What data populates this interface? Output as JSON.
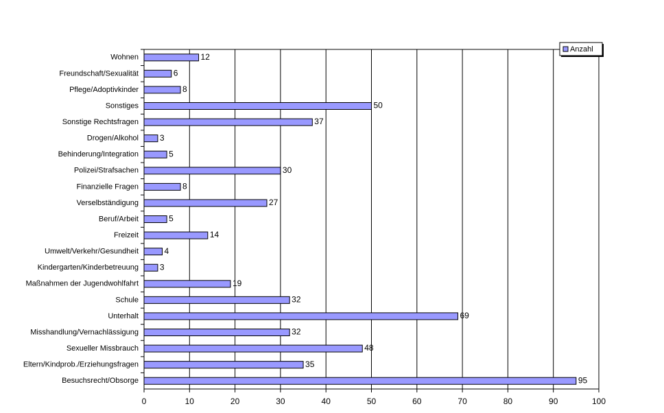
{
  "chart_data": {
    "type": "bar",
    "orientation": "horizontal",
    "categories": [
      "Wohnen",
      "Freundschaft/Sexualität",
      "Pflege/Adoptivkinder",
      "Sonstiges",
      "Sonstige Rechtsfragen",
      "Drogen/Alkohol",
      "Behinderung/Integration",
      "Polizei/Strafsachen",
      "Finanzielle Fragen",
      "Verselbständigung",
      "Beruf/Arbeit",
      "Freizeit",
      "Umwelt/Verkehr/Gesundheit",
      "Kindergarten/Kinderbetreuung",
      "Maßnahmen der Jugendwohlfahrt",
      "Schule",
      "Unterhalt",
      "Misshandlung/Vernachlässigung",
      "Sexueller Missbrauch",
      "Eltern/Kindprob./Erziehungsfragen",
      "Besuchsrecht/Obsorge"
    ],
    "series": [
      {
        "name": "Anzahl",
        "color": "#9999ff",
        "values": [
          12,
          6,
          8,
          50,
          37,
          3,
          5,
          30,
          8,
          27,
          5,
          14,
          4,
          3,
          19,
          32,
          69,
          32,
          48,
          35,
          95
        ]
      }
    ],
    "xlim": [
      0,
      100
    ],
    "xticks": [
      0,
      10,
      20,
      30,
      40,
      50,
      60,
      70,
      80,
      90,
      100
    ],
    "grid": true,
    "legend": "top-right"
  }
}
